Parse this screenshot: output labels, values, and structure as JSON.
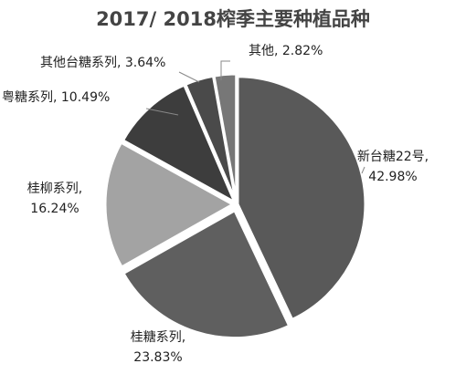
{
  "chart_data": {
    "type": "pie",
    "title": "2017/ 2018榨季主要种植品种",
    "legend": "none",
    "slices": [
      {
        "name": "新台糖22号",
        "value": 42.98,
        "display": "42.98%",
        "color": "#595959",
        "label_lines": [
          "新台糖22号,",
          "42.98%"
        ]
      },
      {
        "name": "桂糖系列",
        "value": 23.83,
        "display": "23.83%",
        "color": "#5f5f5f",
        "label_lines": [
          "桂糖系列,",
          "23.83%"
        ]
      },
      {
        "name": "桂柳系列",
        "value": 16.24,
        "display": "16.24%",
        "color": "#a3a3a3",
        "label_lines": [
          "桂柳系列,",
          "16.24%"
        ]
      },
      {
        "name": "粤糖系列",
        "value": 10.49,
        "display": "10.49%",
        "color": "#3d3d3d",
        "label_lines": [
          "粤糖系列, 10.49%"
        ]
      },
      {
        "name": "其他台糖系列",
        "value": 3.64,
        "display": "3.64%",
        "color": "#4a4a4a",
        "label_lines": [
          "其他台糖系列, 3.64%"
        ]
      },
      {
        "name": "其他",
        "value": 2.82,
        "display": "2.82%",
        "color": "#777777",
        "label_lines": [
          "其他, 2.82%"
        ]
      }
    ]
  }
}
